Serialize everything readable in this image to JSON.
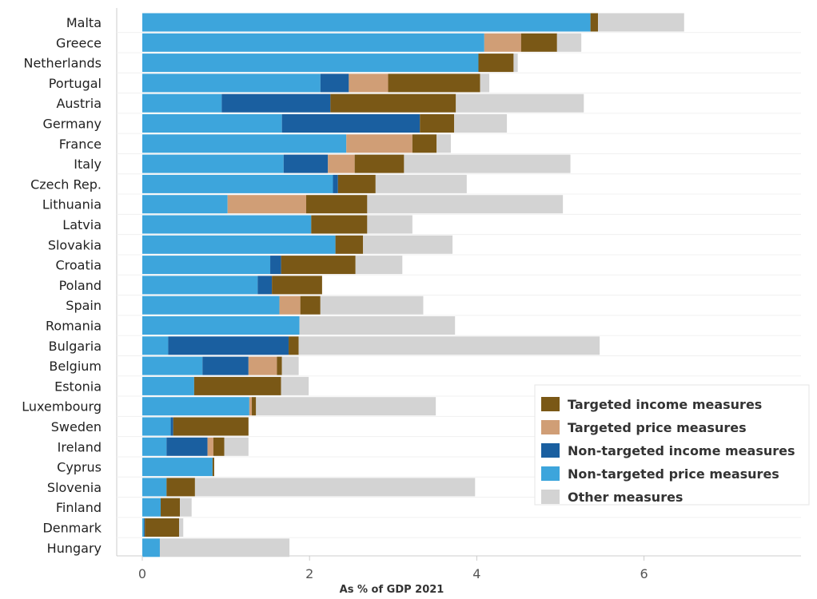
{
  "chart_data": {
    "type": "bar",
    "orientation": "horizontal",
    "stacked": true,
    "xlabel": "As % of GDP 2021",
    "xlim": [
      0,
      7.8
    ],
    "xticks": [
      0,
      2,
      4,
      6
    ],
    "grid": true,
    "legend_position": "bottom-right",
    "categories": [
      "Malta",
      "Greece",
      "Netherlands",
      "Portugal",
      "Austria",
      "Germany",
      "France",
      "Italy",
      "Czech Rep.",
      "Lithuania",
      "Latvia",
      "Slovakia",
      "Croatia",
      "Poland",
      "Spain",
      "Romania",
      "Bulgaria",
      "Belgium",
      "Estonia",
      "Luxembourg",
      "Sweden",
      "Ireland",
      "Cyprus",
      "Slovenia",
      "Finland",
      "Denmark",
      "Hungary"
    ],
    "series": [
      {
        "name": "Non-targeted price measures",
        "color": "#3da5dc",
        "values": [
          5.36,
          4.09,
          4.02,
          2.13,
          0.95,
          1.67,
          2.44,
          1.69,
          2.28,
          1.02,
          2.02,
          2.31,
          1.53,
          1.38,
          1.64,
          1.88,
          0.31,
          0.72,
          0.62,
          1.28,
          0.34,
          0.29,
          0.84,
          0.29,
          0.22,
          0.02,
          0.21
        ]
      },
      {
        "name": "Non-targeted income measures",
        "color": "#1a5fa0",
        "values": [
          0,
          0,
          0,
          0.34,
          1.3,
          1.65,
          0,
          0.53,
          0.06,
          0,
          0,
          0,
          0.13,
          0.17,
          0,
          0,
          1.44,
          0.55,
          0,
          0,
          0.03,
          0.49,
          0,
          0,
          0,
          0.01,
          0
        ]
      },
      {
        "name": "Targeted price measures",
        "color": "#d09e76",
        "values": [
          0,
          0.44,
          0,
          0.47,
          0,
          0,
          0.79,
          0.32,
          0,
          0.94,
          0,
          0,
          0,
          0,
          0.25,
          0,
          0,
          0.34,
          0,
          0.03,
          0,
          0.07,
          0,
          0,
          0,
          0,
          0
        ]
      },
      {
        "name": "Targeted income measures",
        "color": "#7a5816",
        "values": [
          0.09,
          0.43,
          0.42,
          1.1,
          1.5,
          0.41,
          0.29,
          0.59,
          0.45,
          0.73,
          0.67,
          0.33,
          0.89,
          0.6,
          0.24,
          0,
          0.12,
          0.06,
          1.04,
          0.05,
          0.9,
          0.13,
          0.02,
          0.34,
          0.23,
          0.41,
          0
        ]
      },
      {
        "name": "Other measures",
        "color": "#d3d3d3",
        "values": [
          1.03,
          0.29,
          0.05,
          0.11,
          1.53,
          0.63,
          0.17,
          1.99,
          1.09,
          2.34,
          0.54,
          1.07,
          0.56,
          0,
          1.23,
          1.86,
          3.6,
          0.2,
          0.33,
          2.15,
          0,
          0.29,
          0,
          3.35,
          0.14,
          0.05,
          1.55
        ]
      }
    ],
    "legend_order": [
      "Targeted income measures",
      "Targeted price measures",
      "Non-targeted income measures",
      "Non-targeted price measures",
      "Other measures"
    ]
  }
}
